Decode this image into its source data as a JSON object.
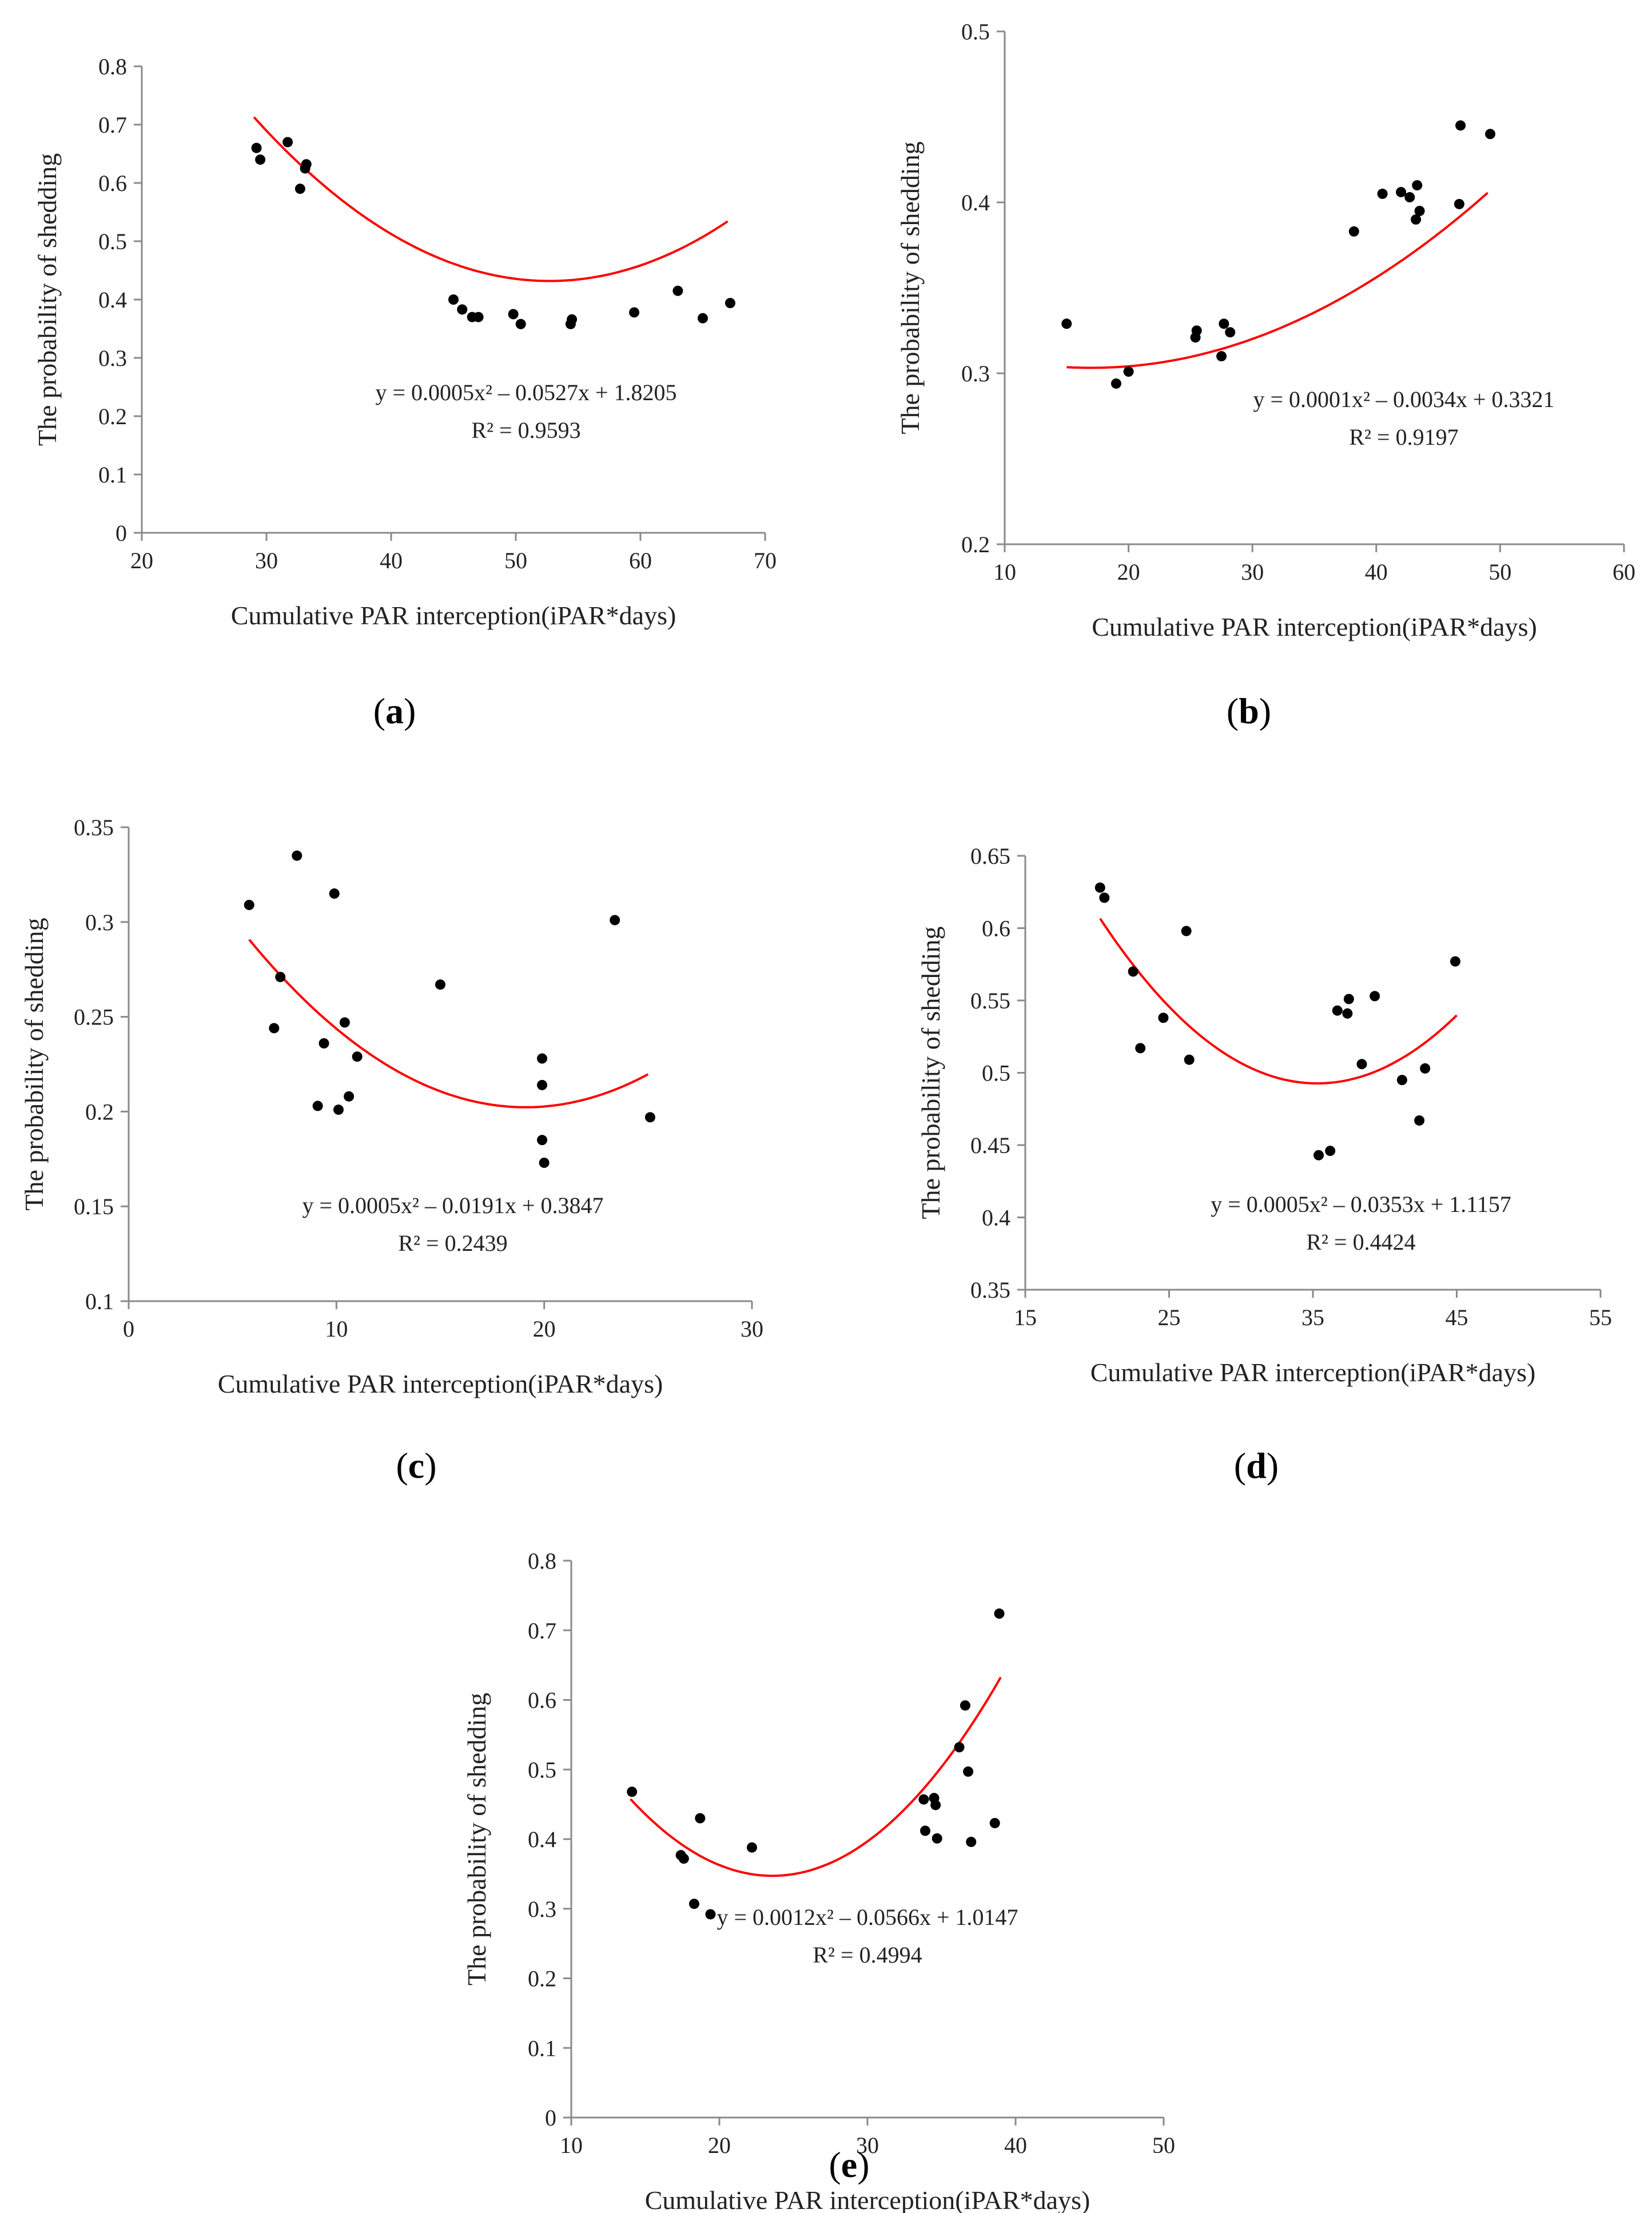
{
  "chart_data": [
    {
      "type": "scatter",
      "panel": "a",
      "caption": "(a)",
      "caption_letter": "a",
      "xlabel": "Cumulative PAR interception(iPAR*days)",
      "ylabel": "The probability of shedding",
      "xlim": [
        20,
        70
      ],
      "ylim": [
        0,
        0.8
      ],
      "xticks": [
        20,
        30,
        40,
        50,
        60,
        70
      ],
      "yticks": [
        0,
        0.1,
        0.2,
        0.3,
        0.4,
        0.5,
        0.6,
        0.7,
        0.8
      ],
      "points": [
        [
          29.2,
          0.66
        ],
        [
          29.5,
          0.64
        ],
        [
          31.7,
          0.67
        ],
        [
          32.7,
          0.59
        ],
        [
          33.1,
          0.625
        ],
        [
          33.2,
          0.632
        ],
        [
          45.0,
          0.4
        ],
        [
          45.7,
          0.383
        ],
        [
          46.5,
          0.37
        ],
        [
          47.0,
          0.37
        ],
        [
          49.8,
          0.375
        ],
        [
          50.4,
          0.358
        ],
        [
          54.4,
          0.358
        ],
        [
          54.5,
          0.366
        ],
        [
          59.5,
          0.378
        ],
        [
          63.0,
          0.415
        ],
        [
          65.0,
          0.368
        ],
        [
          67.2,
          0.394
        ]
      ],
      "trendline": {
        "coefficients": [
          0.0005,
          -0.0527,
          1.8205
        ],
        "x_range": [
          29,
          67
        ]
      },
      "equation": "y = 0.0005x² – 0.0527x + 1.8205",
      "r2": "R² = 0.9593"
    },
    {
      "type": "scatter",
      "panel": "b",
      "caption": "(b)",
      "caption_letter": "b",
      "xlabel": "Cumulative PAR interception(iPAR*days)",
      "ylabel": "The probability of shedding",
      "xlim": [
        10,
        60
      ],
      "ylim": [
        0.2,
        0.5
      ],
      "xticks": [
        10,
        20,
        30,
        40,
        50,
        60
      ],
      "yticks": [
        0.2,
        0.3,
        0.4,
        0.5
      ],
      "points": [
        [
          15.0,
          0.329
        ],
        [
          19.0,
          0.294
        ],
        [
          20.0,
          0.301
        ],
        [
          25.4,
          0.321
        ],
        [
          25.5,
          0.325
        ],
        [
          27.5,
          0.31
        ],
        [
          27.7,
          0.329
        ],
        [
          28.2,
          0.324
        ],
        [
          38.2,
          0.383
        ],
        [
          40.5,
          0.405
        ],
        [
          42.0,
          0.406
        ],
        [
          42.7,
          0.403
        ],
        [
          43.2,
          0.39
        ],
        [
          43.3,
          0.41
        ],
        [
          43.5,
          0.395
        ],
        [
          46.7,
          0.399
        ],
        [
          46.8,
          0.445
        ],
        [
          49.2,
          0.44
        ]
      ],
      "trendline": {
        "coefficients": [
          0.0001,
          -0.0034,
          0.3321
        ],
        "x_range": [
          15,
          49
        ]
      },
      "equation": "y = 0.0001x² – 0.0034x + 0.3321",
      "r2": "R² = 0.9197"
    },
    {
      "type": "scatter",
      "panel": "c",
      "caption": "(c)",
      "caption_letter": "c",
      "xlabel": "Cumulative PAR interception(iPAR*days)",
      "ylabel": "The probability of shedding",
      "xlim": [
        0,
        30
      ],
      "ylim": [
        0.1,
        0.35
      ],
      "xticks": [
        0,
        10,
        20,
        30
      ],
      "yticks": [
        0.1,
        0.15,
        0.2,
        0.25,
        0.3,
        0.35
      ],
      "points": [
        [
          5.8,
          0.309
        ],
        [
          7.0,
          0.244
        ],
        [
          7.3,
          0.271
        ],
        [
          8.1,
          0.335
        ],
        [
          9.1,
          0.203
        ],
        [
          9.4,
          0.236
        ],
        [
          9.9,
          0.315
        ],
        [
          10.1,
          0.201
        ],
        [
          10.4,
          0.247
        ],
        [
          10.6,
          0.208
        ],
        [
          11.0,
          0.229
        ],
        [
          15.0,
          0.267
        ],
        [
          19.9,
          0.228
        ],
        [
          19.9,
          0.214
        ],
        [
          19.9,
          0.185
        ],
        [
          20.0,
          0.173
        ],
        [
          23.4,
          0.301
        ],
        [
          25.1,
          0.197
        ]
      ],
      "trendline": {
        "coefficients": [
          0.0005,
          -0.0191,
          0.3847
        ],
        "x_range": [
          5.8,
          25
        ]
      },
      "equation": "y = 0.0005x² – 0.0191x + 0.3847",
      "r2": "R² = 0.2439"
    },
    {
      "type": "scatter",
      "panel": "d",
      "caption": "(d)",
      "caption_letter": "d",
      "xlabel": "Cumulative PAR interception(iPAR*days)",
      "ylabel": "The probability of shedding",
      "xlim": [
        15,
        55
      ],
      "ylim": [
        0.35,
        0.65
      ],
      "xticks": [
        15,
        25,
        35,
        45,
        55
      ],
      "yticks": [
        0.35,
        0.4,
        0.45,
        0.5,
        0.55,
        0.6,
        0.65
      ],
      "points": [
        [
          20.2,
          0.628
        ],
        [
          20.5,
          0.621
        ],
        [
          22.5,
          0.57
        ],
        [
          23.0,
          0.517
        ],
        [
          24.6,
          0.538
        ],
        [
          26.2,
          0.598
        ],
        [
          26.4,
          0.509
        ],
        [
          35.4,
          0.443
        ],
        [
          36.2,
          0.446
        ],
        [
          36.7,
          0.543
        ],
        [
          37.4,
          0.541
        ],
        [
          37.5,
          0.551
        ],
        [
          38.4,
          0.506
        ],
        [
          39.3,
          0.553
        ],
        [
          41.2,
          0.495
        ],
        [
          42.4,
          0.467
        ],
        [
          42.8,
          0.503
        ],
        [
          44.9,
          0.577
        ]
      ],
      "trendline": {
        "coefficients": [
          0.0005,
          -0.0353,
          1.1157
        ],
        "x_range": [
          20.2,
          45
        ]
      },
      "equation": "y = 0.0005x² – 0.0353x + 1.1157",
      "r2": "R² = 0.4424"
    },
    {
      "type": "scatter",
      "panel": "e",
      "caption": "(e)",
      "caption_letter": "e",
      "xlabel": "Cumulative PAR interception(iPAR*days)",
      "ylabel": "The probability of shedding",
      "xlim": [
        10,
        50
      ],
      "ylim": [
        0,
        0.8
      ],
      "xticks": [
        10,
        20,
        30,
        40,
        50
      ],
      "yticks": [
        0,
        0.1,
        0.2,
        0.3,
        0.4,
        0.5,
        0.6,
        0.7,
        0.8
      ],
      "points": [
        [
          14.1,
          0.468
        ],
        [
          17.4,
          0.377
        ],
        [
          17.6,
          0.372
        ],
        [
          18.3,
          0.307
        ],
        [
          18.7,
          0.43
        ],
        [
          19.4,
          0.292
        ],
        [
          22.2,
          0.388
        ],
        [
          33.8,
          0.457
        ],
        [
          33.9,
          0.412
        ],
        [
          34.5,
          0.459
        ],
        [
          34.6,
          0.449
        ],
        [
          34.7,
          0.401
        ],
        [
          36.2,
          0.532
        ],
        [
          36.6,
          0.592
        ],
        [
          36.8,
          0.497
        ],
        [
          37.0,
          0.396
        ],
        [
          38.6,
          0.423
        ],
        [
          38.9,
          0.724
        ]
      ],
      "trendline": {
        "coefficients": [
          0.0012,
          -0.0566,
          1.0147
        ],
        "x_range": [
          14,
          39
        ]
      },
      "equation": "y = 0.0012x² – 0.0566x + 1.0147",
      "r2": "R² = 0.4994"
    }
  ]
}
